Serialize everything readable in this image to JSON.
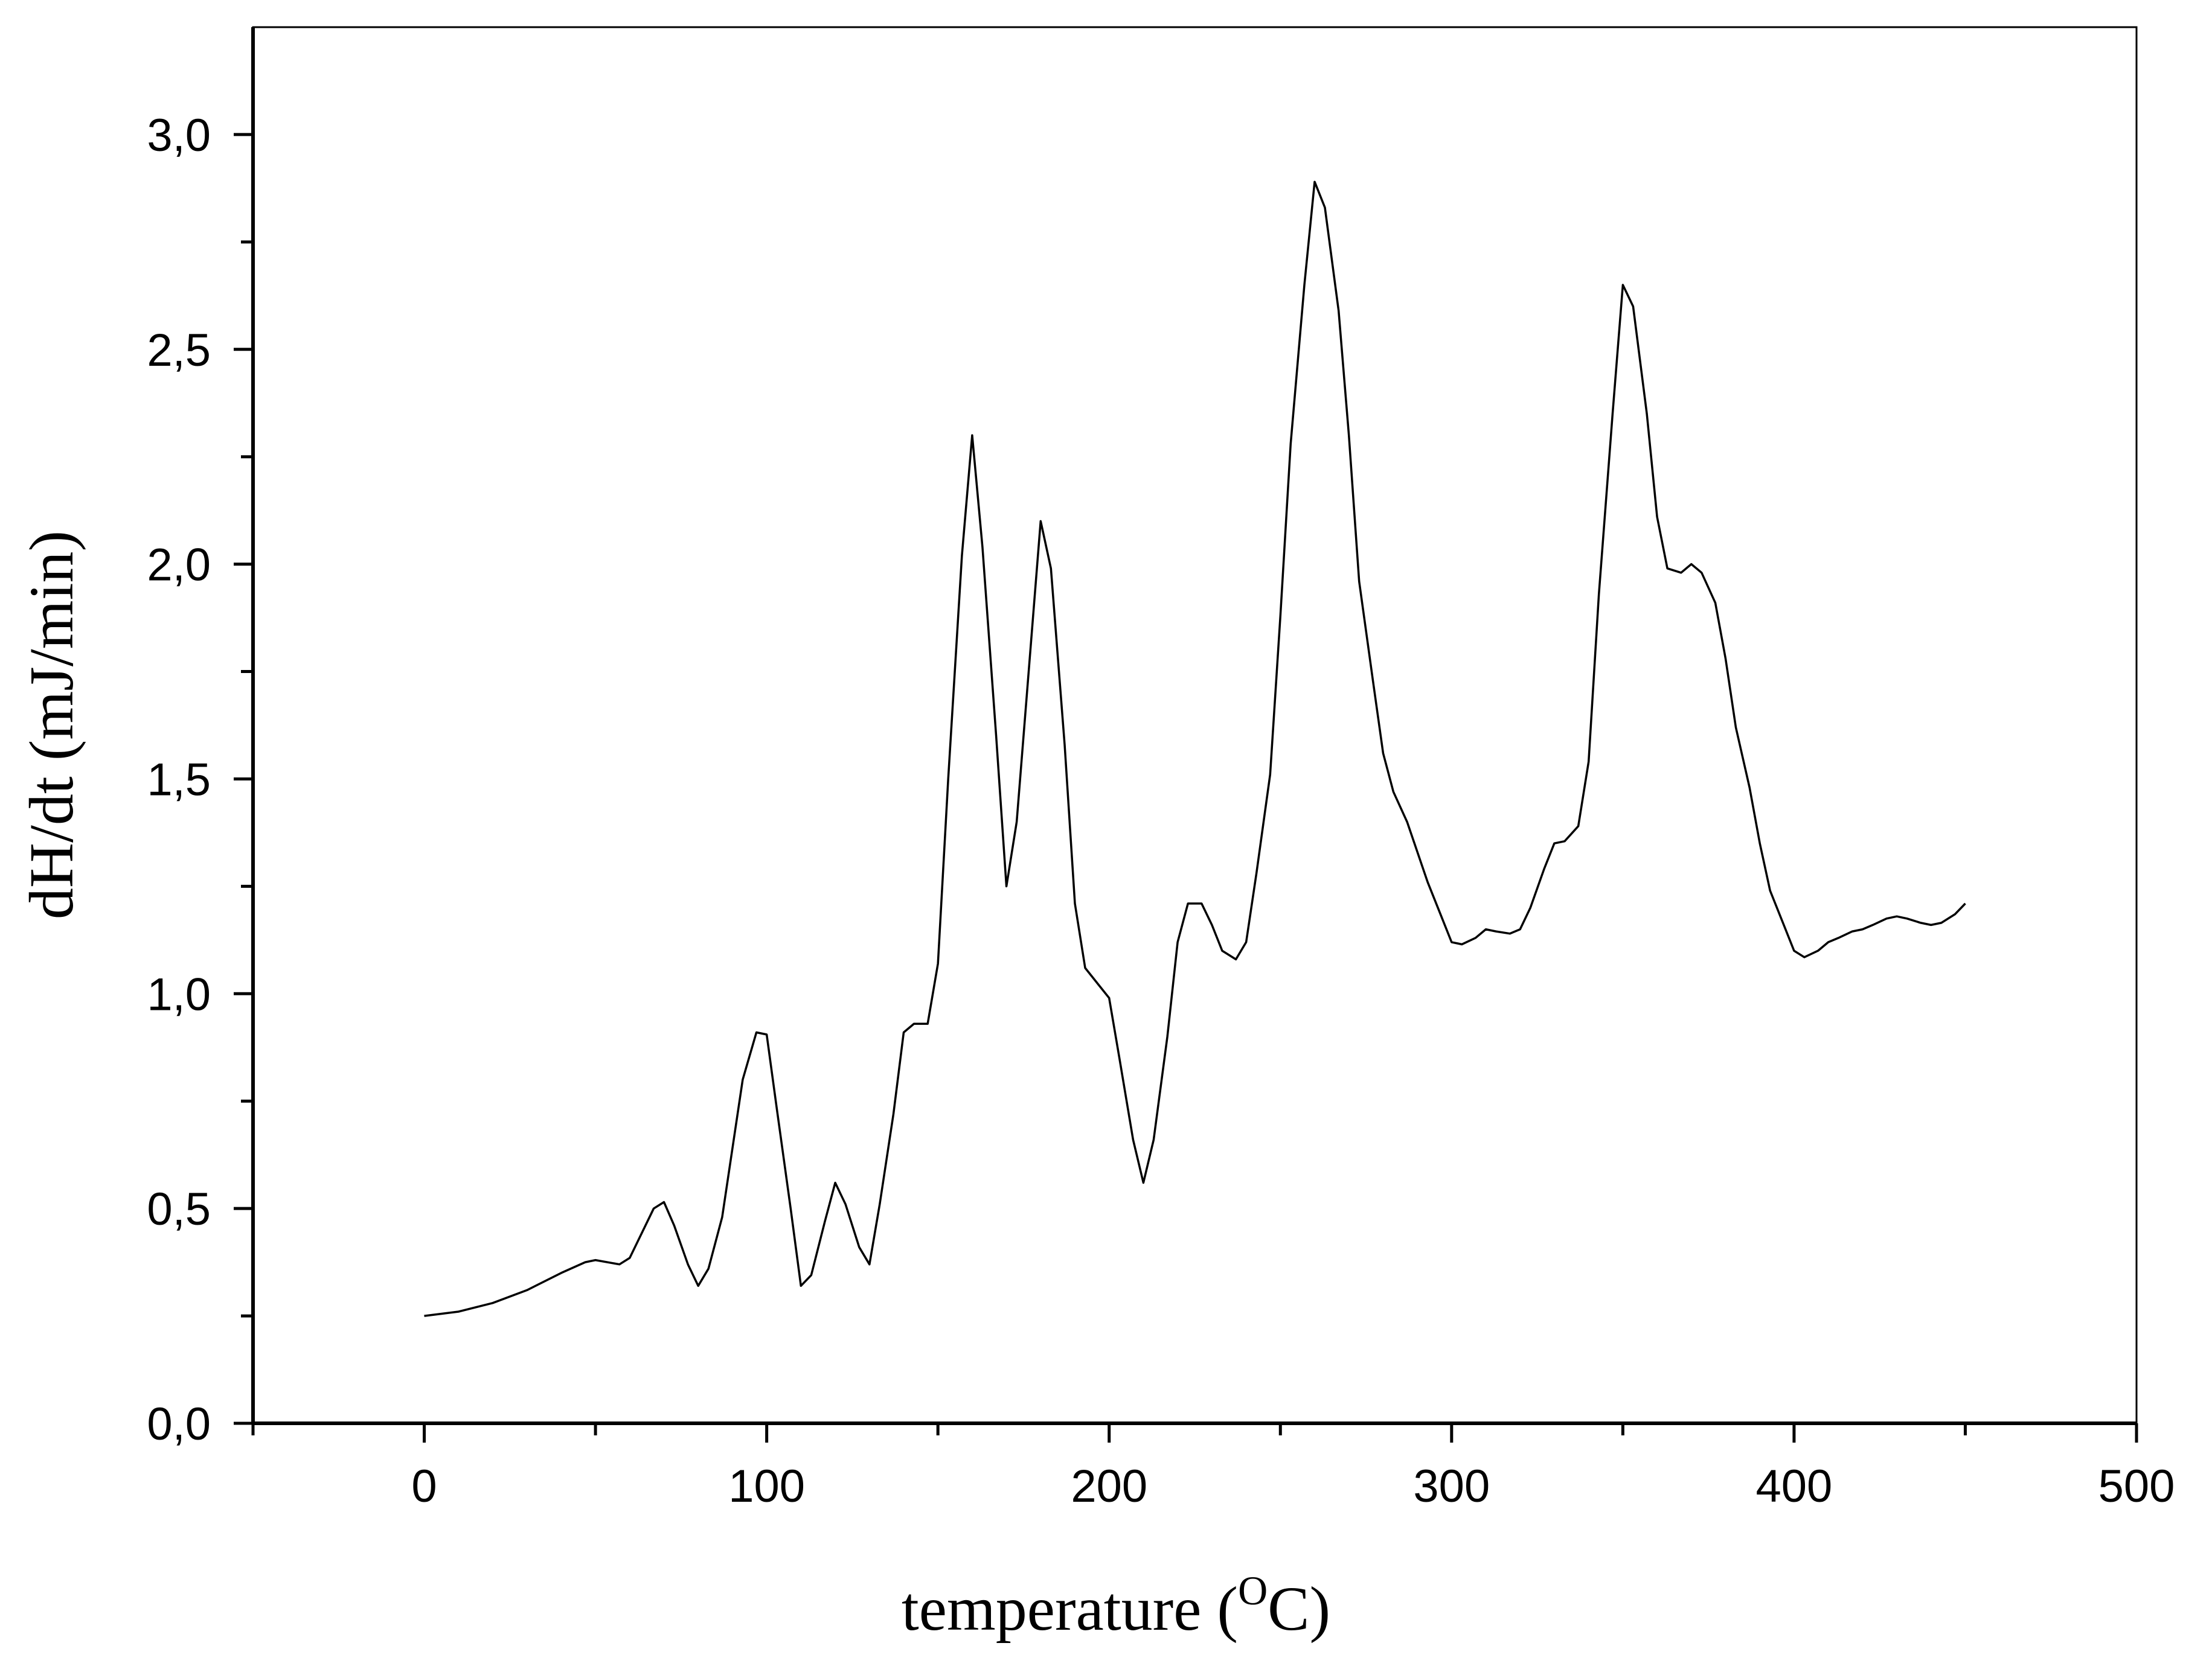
{
  "chart_data": {
    "type": "line",
    "title": "",
    "xlabel": "temperature (",
    "xlabel_superscript": "O",
    "xlabel_suffix": "C)",
    "ylabel": "dH/dt  (mJ/min)",
    "xlim": [
      -50,
      500
    ],
    "ylim": [
      0,
      3.25
    ],
    "x_ticks": [
      0,
      100,
      200,
      300,
      400,
      500
    ],
    "x_tick_labels": [
      "0",
      "100",
      "200",
      "300",
      "400",
      "500"
    ],
    "y_ticks": [
      0.0,
      0.5,
      1.0,
      1.5,
      2.0,
      2.5,
      3.0
    ],
    "y_tick_labels": [
      "0,0",
      "0,5",
      "1,0",
      "1,5",
      "2,0",
      "2,5",
      "3,0"
    ],
    "grid": false,
    "line_color": "#000000",
    "series": [
      {
        "x": [
          0,
          10,
          20,
          30,
          40,
          47,
          50,
          57,
          60,
          67,
          70,
          73,
          77,
          80,
          83,
          87,
          90,
          93,
          97,
          100,
          103,
          107,
          110,
          113,
          117,
          120,
          123,
          127,
          130,
          133,
          137,
          140,
          143,
          147,
          150,
          153,
          157,
          160,
          163,
          167,
          170,
          173,
          177,
          180,
          183,
          187,
          190,
          193,
          197,
          200,
          203,
          207,
          210,
          213,
          217,
          220,
          223,
          227,
          230,
          233,
          237,
          240,
          243,
          247,
          250,
          253,
          257,
          260,
          263,
          267,
          270,
          273,
          277,
          280,
          283,
          287,
          290,
          293,
          297,
          300,
          303,
          307,
          310,
          313,
          317,
          320,
          323,
          327,
          330,
          333,
          337,
          340,
          343,
          347,
          350,
          353,
          357,
          360,
          363,
          367,
          370,
          373,
          377,
          380,
          383,
          387,
          390,
          393,
          397,
          400,
          403,
          407,
          410,
          413,
          417,
          420,
          423,
          427,
          430,
          433,
          437,
          440,
          443,
          447,
          450
        ],
        "y": [
          0.25,
          0.26,
          0.28,
          0.31,
          0.35,
          0.375,
          0.38,
          0.37,
          0.385,
          0.5,
          0.515,
          0.46,
          0.37,
          0.32,
          0.36,
          0.48,
          0.64,
          0.8,
          0.91,
          0.905,
          0.73,
          0.5,
          0.32,
          0.345,
          0.47,
          0.56,
          0.51,
          0.41,
          0.37,
          0.51,
          0.72,
          0.91,
          0.93,
          0.93,
          1.07,
          1.5,
          2.02,
          2.3,
          2.04,
          1.6,
          1.25,
          1.4,
          1.8,
          2.1,
          1.99,
          1.58,
          1.21,
          1.06,
          1.02,
          0.99,
          0.85,
          0.66,
          0.56,
          0.66,
          0.9,
          1.12,
          1.21,
          1.21,
          1.16,
          1.1,
          1.08,
          1.12,
          1.28,
          1.51,
          1.88,
          2.28,
          2.65,
          2.89,
          2.83,
          2.59,
          2.3,
          1.96,
          1.73,
          1.56,
          1.47,
          1.4,
          1.33,
          1.26,
          1.18,
          1.12,
          1.115,
          1.13,
          1.15,
          1.145,
          1.14,
          1.15,
          1.2,
          1.29,
          1.35,
          1.355,
          1.39,
          1.54,
          1.93,
          2.35,
          2.65,
          2.6,
          2.35,
          2.11,
          1.99,
          1.98,
          2.0,
          1.98,
          1.91,
          1.78,
          1.62,
          1.48,
          1.35,
          1.24,
          1.16,
          1.1,
          1.085,
          1.1,
          1.12,
          1.13,
          1.145,
          1.15,
          1.16,
          1.175,
          1.18,
          1.175,
          1.165,
          1.16,
          1.165,
          1.185,
          1.21
        ]
      }
    ]
  }
}
